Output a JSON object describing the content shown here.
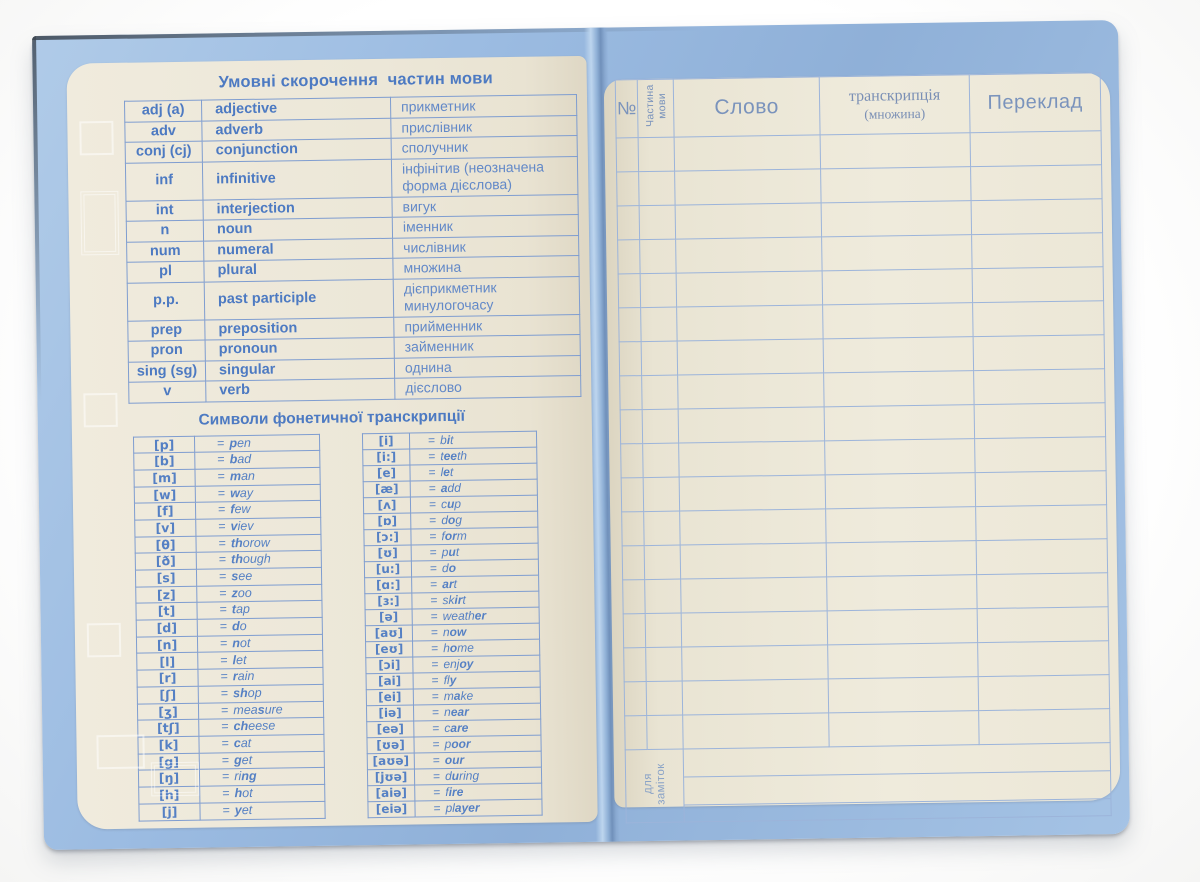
{
  "colors": {
    "cover_blue": "#9cbce2",
    "cover_edge_dark": "#3a4450",
    "page_cream": "#ece7d8",
    "left_line_blue": "#7f9dd0",
    "left_text_blue": "#4d7ac2",
    "right_line_blue": "#9cb4da",
    "right_header_text": "#7a93bc",
    "notes_text": "#8aa3c7"
  },
  "left_page": {
    "title": "Умовні скорочення  частин мови",
    "abbreviations": {
      "rows": [
        {
          "abbr": "adj (a)",
          "en": "adjective",
          "uk": "прикметник"
        },
        {
          "abbr": "adv",
          "en": "adverb",
          "uk": "прислівник"
        },
        {
          "abbr": "conj (cj)",
          "en": "conjunction",
          "uk": "сполучник"
        },
        {
          "abbr": "inf",
          "en": "infinitive",
          "uk": "інфінітив (неозначена форма дієслова)"
        },
        {
          "abbr": "int",
          "en": "interjection",
          "uk": "вигук"
        },
        {
          "abbr": "n",
          "en": "noun",
          "uk": "іменник"
        },
        {
          "abbr": "num",
          "en": "numeral",
          "uk": "числівник"
        },
        {
          "abbr": "pl",
          "en": "plural",
          "uk": "множина"
        },
        {
          "abbr": "p.p.",
          "en": "past participle",
          "uk": "дієприкметник минулогочасу"
        },
        {
          "abbr": "prep",
          "en": "preposition",
          "uk": "прийменник"
        },
        {
          "abbr": "pron",
          "en": "pronoun",
          "uk": "займенник"
        },
        {
          "abbr": "sing (sg)",
          "en": "singular",
          "uk": "однина"
        },
        {
          "abbr": "v",
          "en": "verb",
          "uk": "дієслово"
        }
      ]
    },
    "phonetics": {
      "title": "Символи фонетичної транскрипції",
      "eq": "=",
      "left": [
        {
          "symbol": "[p]",
          "pre": "",
          "bold": "p",
          "rest": "en"
        },
        {
          "symbol": "[b]",
          "pre": "",
          "bold": "b",
          "rest": "ad"
        },
        {
          "symbol": "[m]",
          "pre": "",
          "bold": "m",
          "rest": "an"
        },
        {
          "symbol": "[w]",
          "pre": "",
          "bold": "w",
          "rest": "ay"
        },
        {
          "symbol": "[f]",
          "pre": "",
          "bold": "f",
          "rest": "ew"
        },
        {
          "symbol": "[v]",
          "pre": "",
          "bold": "v",
          "rest": "iev"
        },
        {
          "symbol": "[θ]",
          "pre": "",
          "bold": "th",
          "rest": "orow"
        },
        {
          "symbol": "[ð]",
          "pre": "",
          "bold": "th",
          "rest": "ough"
        },
        {
          "symbol": "[s]",
          "pre": "",
          "bold": "s",
          "rest": "ee"
        },
        {
          "symbol": "[z]",
          "pre": "",
          "bold": "z",
          "rest": "oo"
        },
        {
          "symbol": "[t]",
          "pre": "",
          "bold": "t",
          "rest": "ap"
        },
        {
          "symbol": "[d]",
          "pre": "",
          "bold": "d",
          "rest": "o"
        },
        {
          "symbol": "[n]",
          "pre": "",
          "bold": "n",
          "rest": "ot"
        },
        {
          "symbol": "[l]",
          "pre": "",
          "bold": "l",
          "rest": "et"
        },
        {
          "symbol": "[r]",
          "pre": "",
          "bold": "r",
          "rest": "ain"
        },
        {
          "symbol": "[ʃ]",
          "pre": "",
          "bold": "sh",
          "rest": "op"
        },
        {
          "symbol": "[ʒ]",
          "pre": "mea",
          "bold": "s",
          "rest": "ure"
        },
        {
          "symbol": "[tʃ]",
          "pre": "",
          "bold": "ch",
          "rest": "eese"
        },
        {
          "symbol": "[k]",
          "pre": "",
          "bold": "c",
          "rest": "at"
        },
        {
          "symbol": "[g]",
          "pre": "",
          "bold": "g",
          "rest": "et"
        },
        {
          "symbol": "[ŋ]",
          "pre": "ri",
          "bold": "ng",
          "rest": ""
        },
        {
          "symbol": "[h]",
          "pre": "",
          "bold": "h",
          "rest": "ot"
        },
        {
          "symbol": "[j]",
          "pre": "",
          "bold": "y",
          "rest": "et"
        }
      ],
      "right": [
        {
          "symbol": "[i]",
          "pre": "b",
          "bold": "i",
          "rest": "t"
        },
        {
          "symbol": "[i:]",
          "pre": "t",
          "bold": "ee",
          "rest": "th"
        },
        {
          "symbol": "[e]",
          "pre": "l",
          "bold": "e",
          "rest": "t"
        },
        {
          "symbol": "[æ]",
          "pre": "",
          "bold": "a",
          "rest": "dd"
        },
        {
          "symbol": "[ʌ]",
          "pre": "c",
          "bold": "u",
          "rest": "p"
        },
        {
          "symbol": "[ɒ]",
          "pre": "d",
          "bold": "o",
          "rest": "g"
        },
        {
          "symbol": "[ɔ:]",
          "pre": "f",
          "bold": "or",
          "rest": "m"
        },
        {
          "symbol": "[ʊ]",
          "pre": "p",
          "bold": "u",
          "rest": "t"
        },
        {
          "symbol": "[u:]",
          "pre": "d",
          "bold": "o",
          "rest": ""
        },
        {
          "symbol": "[ɑ:]",
          "pre": "",
          "bold": "ar",
          "rest": "t"
        },
        {
          "symbol": "[ɜ:]",
          "pre": "sk",
          "bold": "ir",
          "rest": "t"
        },
        {
          "symbol": "[ə]",
          "pre": "weath",
          "bold": "er",
          "rest": ""
        },
        {
          "symbol": "[aʊ]",
          "pre": "n",
          "bold": "ow",
          "rest": ""
        },
        {
          "symbol": "[eʊ]",
          "pre": "h",
          "bold": "o",
          "rest": "me"
        },
        {
          "symbol": "[ɔi]",
          "pre": "enj",
          "bold": "oy",
          "rest": ""
        },
        {
          "symbol": "[ai]",
          "pre": "fl",
          "bold": "y",
          "rest": ""
        },
        {
          "symbol": "[ei]",
          "pre": "m",
          "bold": "a",
          "rest": "ke"
        },
        {
          "symbol": "[iə]",
          "pre": "n",
          "bold": "ear",
          "rest": ""
        },
        {
          "symbol": "[eə]",
          "pre": "c",
          "bold": "are",
          "rest": ""
        },
        {
          "symbol": "[ʊə]",
          "pre": "p",
          "bold": "oor",
          "rest": ""
        },
        {
          "symbol": "[aʊə]",
          "pre": "",
          "bold": "our",
          "rest": ""
        },
        {
          "symbol": "[jʊə]",
          "pre": "d",
          "bold": "u",
          "rest": "ring"
        },
        {
          "symbol": "[aiə]",
          "pre": "f",
          "bold": "ire",
          "rest": ""
        },
        {
          "symbol": "[eiə]",
          "pre": "pl",
          "bold": "ayer",
          "rest": ""
        }
      ]
    }
  },
  "right_page": {
    "headers": {
      "num": "№",
      "part_of_speech": "Частина мови",
      "word": "Слово",
      "transcription": "транскрипція",
      "transcription_sub": "(множина)",
      "translation": "Переклад"
    },
    "empty_row_count": 18,
    "notes_label": "для заміток"
  }
}
